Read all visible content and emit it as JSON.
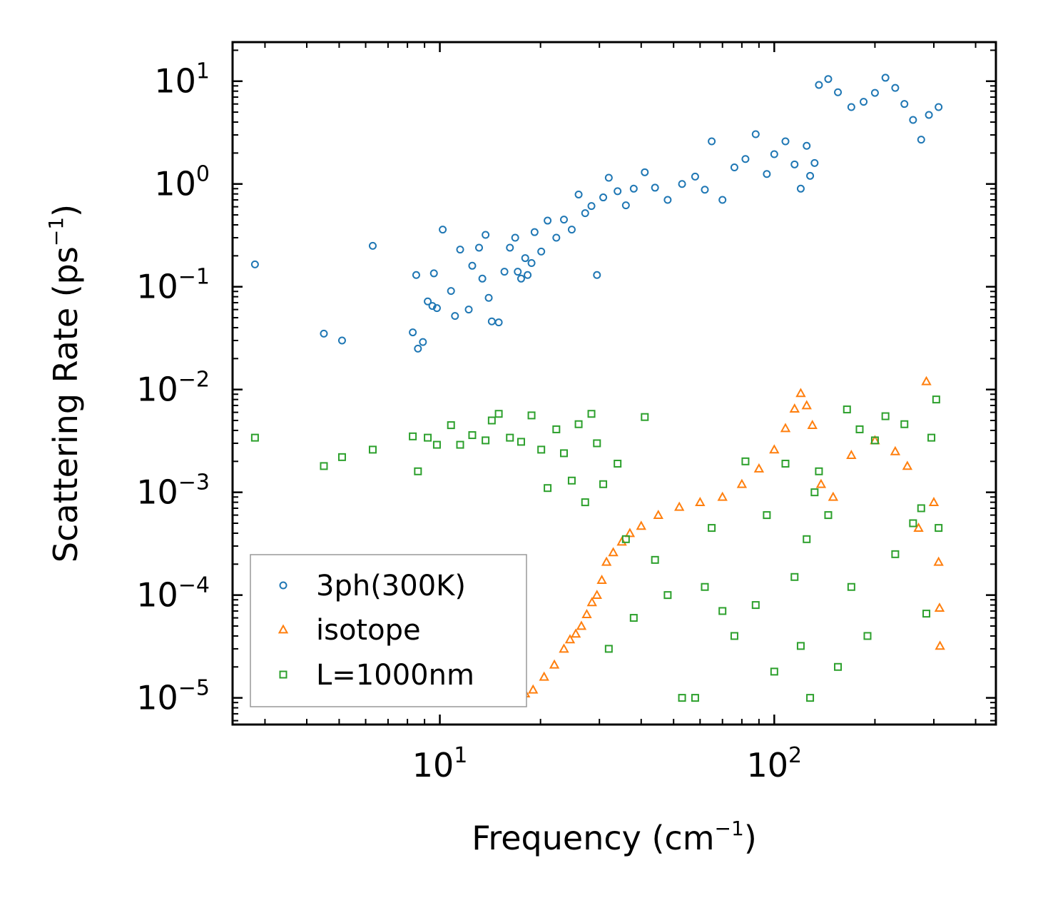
{
  "chart_data": {
    "type": "scatter",
    "title": "",
    "xlabel": "Frequency (cm",
    "xlabel_sup": "−1",
    "xlabel_end": ")",
    "ylabel": "Scattering Rate (ps",
    "ylabel_sup": "−1",
    "ylabel_end": ")",
    "xscale": "log",
    "yscale": "log",
    "xlim": [
      2.4,
      460
    ],
    "ylim": [
      5.5e-06,
      24
    ],
    "x_ticks": [
      {
        "value": 10,
        "base": "10",
        "exp": "1"
      },
      {
        "value": 100,
        "base": "10",
        "exp": "2"
      }
    ],
    "y_ticks": [
      {
        "value": 10,
        "base": "10",
        "exp": "1"
      },
      {
        "value": 1,
        "base": "10",
        "exp": "0"
      },
      {
        "value": 0.1,
        "base": "10",
        "exp": "−1"
      },
      {
        "value": 0.01,
        "base": "10",
        "exp": "−2"
      },
      {
        "value": 0.001,
        "base": "10",
        "exp": "−3"
      },
      {
        "value": 0.0001,
        "base": "10",
        "exp": "−4"
      },
      {
        "value": 1e-05,
        "base": "10",
        "exp": "−5"
      }
    ],
    "legend_position": "lower-left",
    "series": [
      {
        "name": "3ph(300K)",
        "marker": "circle",
        "color": "#1f77b4",
        "points": [
          [
            2.8,
            0.165
          ],
          [
            4.5,
            0.035
          ],
          [
            5.1,
            0.03
          ],
          [
            6.3,
            0.25
          ],
          [
            8.3,
            0.036
          ],
          [
            8.5,
            0.13
          ],
          [
            8.6,
            0.025
          ],
          [
            8.9,
            0.029
          ],
          [
            9.2,
            0.072
          ],
          [
            9.5,
            0.065
          ],
          [
            9.6,
            0.135
          ],
          [
            9.8,
            0.062
          ],
          [
            10.2,
            0.36
          ],
          [
            10.8,
            0.091
          ],
          [
            11.1,
            0.052
          ],
          [
            11.5,
            0.23
          ],
          [
            12.2,
            0.06
          ],
          [
            12.5,
            0.16
          ],
          [
            13.1,
            0.24
          ],
          [
            13.4,
            0.12
          ],
          [
            13.7,
            0.32
          ],
          [
            14.0,
            0.078
          ],
          [
            14.3,
            0.046
          ],
          [
            15.0,
            0.045
          ],
          [
            15.6,
            0.14
          ],
          [
            16.2,
            0.24
          ],
          [
            16.8,
            0.3
          ],
          [
            17.1,
            0.14
          ],
          [
            17.5,
            0.12
          ],
          [
            18.0,
            0.19
          ],
          [
            18.3,
            0.13
          ],
          [
            18.8,
            0.17
          ],
          [
            19.2,
            0.34
          ],
          [
            20.1,
            0.22
          ],
          [
            21.0,
            0.44
          ],
          [
            22.3,
            0.3
          ],
          [
            23.5,
            0.45
          ],
          [
            24.8,
            0.36
          ],
          [
            26.0,
            0.79
          ],
          [
            27.2,
            0.52
          ],
          [
            28.4,
            0.61
          ],
          [
            29.5,
            0.13
          ],
          [
            30.8,
            0.74
          ],
          [
            32.0,
            1.15
          ],
          [
            34.0,
            0.85
          ],
          [
            36.0,
            0.62
          ],
          [
            38.0,
            0.9
          ],
          [
            41.0,
            1.3
          ],
          [
            44.0,
            0.92
          ],
          [
            48.0,
            0.7
          ],
          [
            53.0,
            1.0
          ],
          [
            58.0,
            1.18
          ],
          [
            62.0,
            0.88
          ],
          [
            65.0,
            2.6
          ],
          [
            70.0,
            0.7
          ],
          [
            76.0,
            1.45
          ],
          [
            82.0,
            1.75
          ],
          [
            88.0,
            3.05
          ],
          [
            95.0,
            1.25
          ],
          [
            100.0,
            1.95
          ],
          [
            108.0,
            2.6
          ],
          [
            115.0,
            1.55
          ],
          [
            120.0,
            0.9
          ],
          [
            125.0,
            2.35
          ],
          [
            128.0,
            1.2
          ],
          [
            132.0,
            1.6
          ],
          [
            136.0,
            9.2
          ],
          [
            145.0,
            10.5
          ],
          [
            155.0,
            7.8
          ],
          [
            170.0,
            5.6
          ],
          [
            185.0,
            6.3
          ],
          [
            200.0,
            7.7
          ],
          [
            215.0,
            10.8
          ],
          [
            230.0,
            8.6
          ],
          [
            245.0,
            6.0
          ],
          [
            260.0,
            4.2
          ],
          [
            275.0,
            2.7
          ],
          [
            290.0,
            4.7
          ],
          [
            310.0,
            5.6
          ]
        ]
      },
      {
        "name": "isotope",
        "marker": "triangle",
        "color": "#ff7f0e",
        "points": [
          [
            18.0,
            1.1e-05
          ],
          [
            19.0,
            1.2e-05
          ],
          [
            20.5,
            1.6e-05
          ],
          [
            22.0,
            2.1e-05
          ],
          [
            23.5,
            3e-05
          ],
          [
            24.5,
            3.7e-05
          ],
          [
            25.5,
            4.2e-05
          ],
          [
            26.5,
            5e-05
          ],
          [
            27.5,
            6.5e-05
          ],
          [
            28.5,
            8.5e-05
          ],
          [
            29.5,
            0.0001
          ],
          [
            30.5,
            0.00014
          ],
          [
            31.5,
            0.00021
          ],
          [
            33.0,
            0.00026
          ],
          [
            35.0,
            0.00033
          ],
          [
            37.0,
            0.0004
          ],
          [
            40.0,
            0.00047
          ],
          [
            45.0,
            0.0006
          ],
          [
            52.0,
            0.00072
          ],
          [
            60.0,
            0.0008
          ],
          [
            70.0,
            0.0009
          ],
          [
            80.0,
            0.0012
          ],
          [
            90.0,
            0.0017
          ],
          [
            100.0,
            0.0026
          ],
          [
            108.0,
            0.0042
          ],
          [
            115.0,
            0.0065
          ],
          [
            120.0,
            0.0092
          ],
          [
            125.0,
            0.007
          ],
          [
            130.0,
            0.0045
          ],
          [
            138.0,
            0.0012
          ],
          [
            150.0,
            0.0009
          ],
          [
            170.0,
            0.0023
          ],
          [
            200.0,
            0.0032
          ],
          [
            230.0,
            0.0025
          ],
          [
            250.0,
            0.0018
          ],
          [
            270.0,
            0.00045
          ],
          [
            285.0,
            0.012
          ],
          [
            300.0,
            0.0008
          ],
          [
            310.0,
            0.00021
          ],
          [
            312.0,
            7.5e-05
          ],
          [
            313.0,
            3.2e-05
          ]
        ]
      },
      {
        "name": "L=1000nm",
        "marker": "square",
        "color": "#2ca02c",
        "points": [
          [
            2.8,
            0.0034
          ],
          [
            4.5,
            0.0018
          ],
          [
            5.1,
            0.0022
          ],
          [
            6.3,
            0.0026
          ],
          [
            8.3,
            0.0035
          ],
          [
            8.6,
            0.0016
          ],
          [
            9.2,
            0.0034
          ],
          [
            9.8,
            0.0029
          ],
          [
            10.8,
            0.0045
          ],
          [
            11.5,
            0.0029
          ],
          [
            12.5,
            0.0036
          ],
          [
            13.7,
            0.0032
          ],
          [
            14.3,
            0.005
          ],
          [
            15.0,
            0.0058
          ],
          [
            16.2,
            0.0034
          ],
          [
            17.5,
            0.0031
          ],
          [
            18.8,
            0.0056
          ],
          [
            20.1,
            0.0026
          ],
          [
            21.0,
            0.0011
          ],
          [
            22.3,
            0.0041
          ],
          [
            23.5,
            0.0024
          ],
          [
            24.8,
            0.0013
          ],
          [
            26.0,
            0.0046
          ],
          [
            27.2,
            0.0008
          ],
          [
            28.4,
            0.0058
          ],
          [
            29.5,
            0.003
          ],
          [
            30.8,
            0.0012
          ],
          [
            32.0,
            3e-05
          ],
          [
            34.0,
            0.0019
          ],
          [
            36.0,
            0.00035
          ],
          [
            38.0,
            6e-05
          ],
          [
            41.0,
            0.0054
          ],
          [
            44.0,
            0.00022
          ],
          [
            48.0,
            0.0001
          ],
          [
            53.0,
            1e-05
          ],
          [
            58.0,
            1e-05
          ],
          [
            62.0,
            0.00012
          ],
          [
            65.0,
            0.00045
          ],
          [
            70.0,
            7e-05
          ],
          [
            76.0,
            4e-05
          ],
          [
            82.0,
            0.002
          ],
          [
            88.0,
            8e-05
          ],
          [
            95.0,
            0.0006
          ],
          [
            100.0,
            1.8e-05
          ],
          [
            108.0,
            0.0019
          ],
          [
            115.0,
            0.00015
          ],
          [
            120.0,
            3.2e-05
          ],
          [
            125.0,
            0.00035
          ],
          [
            128.0,
            1e-05
          ],
          [
            132.0,
            0.001
          ],
          [
            136.0,
            0.0016
          ],
          [
            145.0,
            0.0006
          ],
          [
            155.0,
            2e-05
          ],
          [
            165.0,
            0.0064
          ],
          [
            170.0,
            0.00012
          ],
          [
            180.0,
            0.0041
          ],
          [
            190.0,
            4e-05
          ],
          [
            200.0,
            0.0032
          ],
          [
            215.0,
            0.0055
          ],
          [
            230.0,
            0.00025
          ],
          [
            245.0,
            0.0046
          ],
          [
            260.0,
            0.0005
          ],
          [
            275.0,
            0.0007
          ],
          [
            285.0,
            6.6e-05
          ],
          [
            295.0,
            0.0034
          ],
          [
            305.0,
            0.008
          ],
          [
            310.0,
            0.00045
          ]
        ]
      }
    ]
  }
}
